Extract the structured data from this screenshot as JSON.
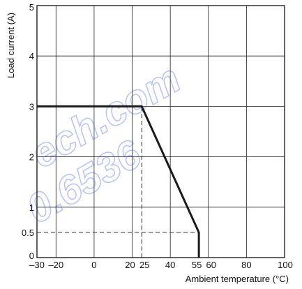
{
  "chart_data": {
    "type": "line",
    "xlabel": "Ambient temperature (°C)",
    "ylabel": "Load current (A)",
    "xlim": [
      -30,
      100
    ],
    "ylim": [
      0,
      5
    ],
    "x_ticks": [
      -30,
      -20,
      0,
      20,
      25,
      40,
      55,
      60,
      80,
      100
    ],
    "x_tick_labels": [
      "–30",
      "–20",
      "0",
      "20",
      "25",
      "40",
      "55",
      "60",
      "80",
      "100"
    ],
    "y_ticks": [
      0,
      0.5,
      1,
      2,
      3,
      4,
      5
    ],
    "y_tick_labels": [
      "0",
      "0.5",
      "1",
      "2",
      "3",
      "4",
      "5"
    ],
    "grid": true,
    "series": [
      {
        "x": [
          -30,
          25,
          55,
          55
        ],
        "y": [
          3,
          3,
          0.5,
          0
        ],
        "color": "#1a1a1a"
      }
    ],
    "reference_lines": [
      {
        "x": [
          25,
          25
        ],
        "y": [
          0,
          3
        ],
        "style": "dashed"
      },
      {
        "x": [
          -30,
          55
        ],
        "y": [
          0.5,
          0.5
        ],
        "style": "dashed"
      }
    ],
    "watermark": [
      "ech.com",
      "0.6536"
    ]
  }
}
